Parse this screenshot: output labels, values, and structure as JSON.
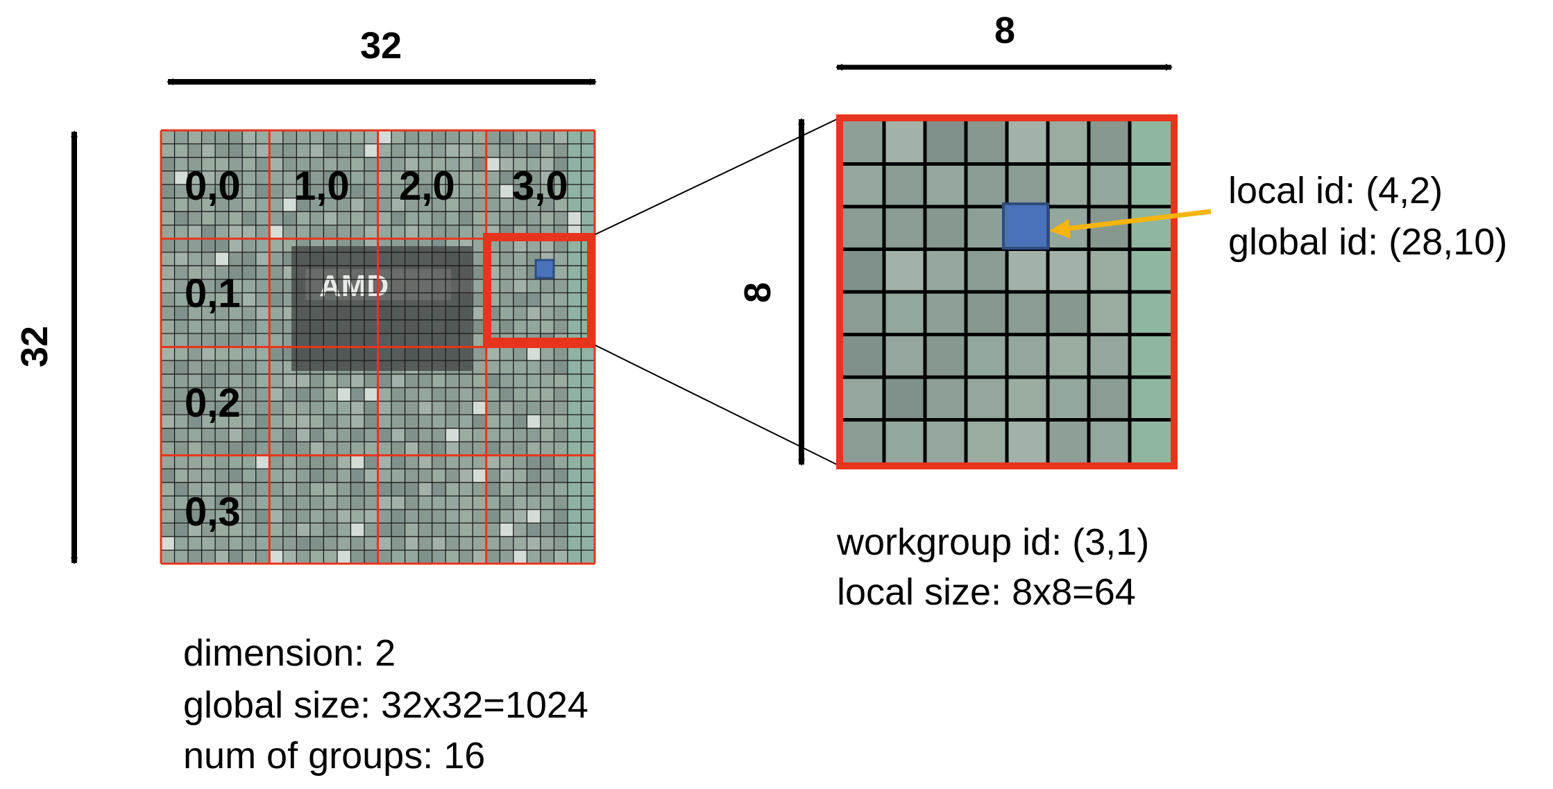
{
  "global_grid": {
    "width_label": "32",
    "height_label": "32",
    "group_labels": [
      "0,0",
      "1,0",
      "2,0",
      "3,0",
      "0,1",
      "0,2",
      "0,3"
    ],
    "chip_text": "AMD",
    "info": [
      "dimension: 2",
      "global size: 32x32=1024",
      "num of groups: 16"
    ]
  },
  "workgroup": {
    "width_label": "8",
    "height_label": "8",
    "info": [
      "workgroup id: (3,1)",
      "local size: 8x8=64"
    ]
  },
  "work_item": {
    "info": [
      "local id: (4,2)",
      "global id: (28,10)"
    ]
  },
  "colors": {
    "red": "#e8341c",
    "highlight": "#4a72b8",
    "arrow_pointer": "#f5b50c",
    "background_pixel": "#8fa39a"
  }
}
